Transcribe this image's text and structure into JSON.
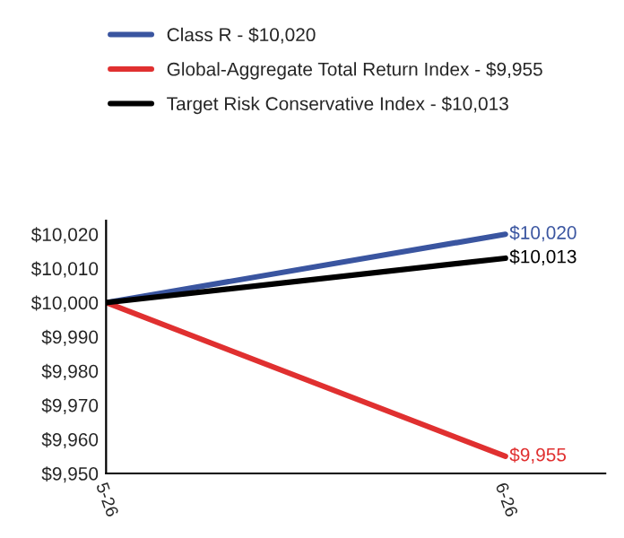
{
  "chart_data": {
    "type": "line",
    "categories": [
      "5-26",
      "6-26"
    ],
    "series": [
      {
        "name": "Class R - $10,020",
        "color": "#3a55a0",
        "values": [
          10000,
          10020
        ],
        "value_labels": [
          null,
          "$10,020"
        ]
      },
      {
        "name": "Global-Aggregate Total Return Index - $9,955",
        "color": "#e03030",
        "values": [
          10000,
          9955
        ],
        "value_labels": [
          null,
          "$9,955"
        ]
      },
      {
        "name": "Target Risk Conservative Index - $10,013",
        "color": "#000000",
        "values": [
          10000,
          10013
        ],
        "value_labels": [
          null,
          "$10,013"
        ]
      }
    ],
    "ylim": [
      9950,
      10024
    ],
    "yticks": [
      {
        "value": 9950,
        "label": "$9,950"
      },
      {
        "value": 9960,
        "label": "$9,960"
      },
      {
        "value": 9970,
        "label": "$9,970"
      },
      {
        "value": 9980,
        "label": "$9,980"
      },
      {
        "value": 9990,
        "label": "$9,990"
      },
      {
        "value": 10000,
        "label": "$10,000"
      },
      {
        "value": 10010,
        "label": "$10,010"
      },
      {
        "value": 10020,
        "label": "$10,020"
      }
    ],
    "grid": false,
    "legend": "top",
    "marker": "none",
    "line_style": "solid"
  }
}
